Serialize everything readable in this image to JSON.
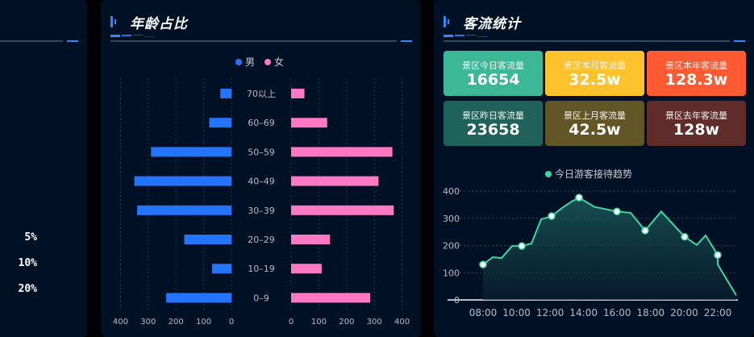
{
  "left_panel": {
    "percent_labels": [
      "5%",
      "10%",
      "20%"
    ]
  },
  "age_panel": {
    "title": "年龄占比",
    "legend": [
      {
        "label": "男",
        "color": "#2475fc"
      },
      {
        "label": "女",
        "color": "#ff78c3"
      }
    ]
  },
  "flow_panel": {
    "title": "客流统计",
    "cards": [
      {
        "label": "景区今日客流量",
        "value": "16654",
        "color": "#3db896"
      },
      {
        "label": "景区本月客流量",
        "value": "32.5w",
        "color": "#ffc22d"
      },
      {
        "label": "景区本年客流量",
        "value": "128.3w",
        "color": "#ff5a32"
      },
      {
        "label": "景区昨日客流量",
        "value": "23658",
        "color": "#1e6259"
      },
      {
        "label": "景区上月客流量",
        "value": "42.5w",
        "color": "#625626"
      },
      {
        "label": "景区去年客流量",
        "value": "128w",
        "color": "#602c2a"
      }
    ],
    "trend_legend": "今日游客接待趋势"
  },
  "chart_data": [
    {
      "type": "bar",
      "title": "年龄占比",
      "orientation": "horizontal-butterfly",
      "categories": [
        "70以上",
        "60-69",
        "50-59",
        "40-49",
        "30-39",
        "20-29",
        "10-19",
        "0-9"
      ],
      "series": [
        {
          "name": "男",
          "color": "#2475fc",
          "values": [
            40,
            80,
            290,
            350,
            340,
            170,
            70,
            235
          ]
        },
        {
          "name": "女",
          "color": "#ff78c3",
          "values": [
            48,
            130,
            365,
            315,
            370,
            140,
            110,
            285
          ]
        }
      ],
      "xticks_left": [
        "400",
        "300",
        "200",
        "100",
        "0"
      ],
      "xticks_right": [
        "0",
        "100",
        "200",
        "300",
        "400"
      ],
      "xlim": [
        0,
        400
      ],
      "grid": true,
      "legend_position": "top"
    },
    {
      "type": "area",
      "title": "今日游客接待趋势",
      "series": [
        {
          "name": "今日游客接待趋势",
          "color": "#3ed6a4",
          "x": [
            "08:00",
            "08:20",
            "08:40",
            "09:10",
            "09:30",
            "09:50",
            "10:10",
            "10:30",
            "10:50",
            "11:00",
            "11:20",
            "11:55",
            "12:30",
            "13:05",
            "13:30",
            "14:05",
            "14:25",
            "14:50",
            "15:30",
            "15:50",
            "16:20",
            "16:50",
            "17:10",
            "17:40"
          ],
          "values": [
            130,
            157,
            154,
            198,
            198,
            207,
            296,
            308,
            338,
            360,
            376,
            342,
            325,
            320,
            255,
            325,
            232,
            202,
            237,
            165,
            130,
            130,
            130,
            17
          ],
          "markers_at": [
            "08:00",
            "09:30",
            "10:30",
            "11:20",
            "12:30",
            "13:30",
            "15:30",
            "17:10"
          ]
        }
      ],
      "xticks": [
        "08:00",
        "10:00",
        "12:00",
        "14:00",
        "16:00",
        "18:00",
        "20:00",
        "22:00"
      ],
      "yticks": [
        "0",
        "100",
        "200",
        "300",
        "400"
      ],
      "ylim": [
        0,
        400
      ],
      "grid": true,
      "legend_position": "top"
    }
  ]
}
